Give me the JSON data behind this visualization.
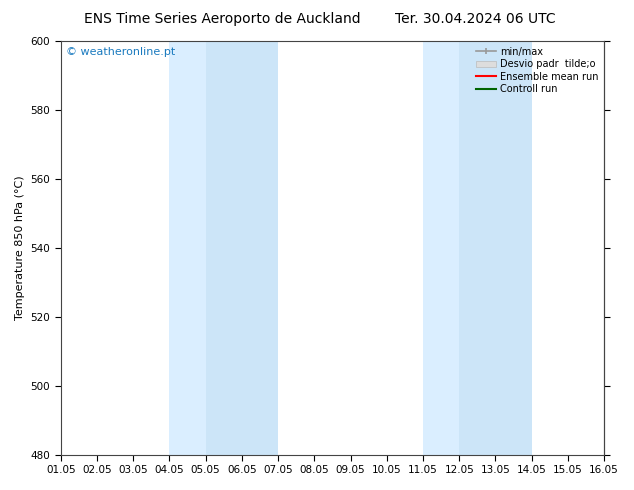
{
  "title_left": "ENS Time Series Aeroporto de Auckland",
  "title_right": "Ter. 30.04.2024 06 UTC",
  "ylabel": "Temperature 850 hPa (°C)",
  "xlim_start": 0,
  "xlim_end": 15,
  "ylim_bottom": 480,
  "ylim_top": 600,
  "yticks": [
    480,
    500,
    520,
    540,
    560,
    580,
    600
  ],
  "xtick_labels": [
    "01.05",
    "02.05",
    "03.05",
    "04.05",
    "05.05",
    "06.05",
    "07.05",
    "08.05",
    "09.05",
    "10.05",
    "11.05",
    "12.05",
    "13.05",
    "14.05",
    "15.05",
    "16.05"
  ],
  "shaded_regions": [
    {
      "xstart": 3.0,
      "xend": 4.0,
      "color": "#daeeff"
    },
    {
      "xstart": 4.0,
      "xend": 6.0,
      "color": "#cce5f8"
    },
    {
      "xstart": 10.0,
      "xend": 11.0,
      "color": "#daeeff"
    },
    {
      "xstart": 11.0,
      "xend": 13.0,
      "color": "#cce5f8"
    }
  ],
  "watermark_text": "© weatheronline.pt",
  "watermark_color": "#1a7abf",
  "legend_labels": [
    "min/max",
    "Desvio padr  tilde;o",
    "Ensemble mean run",
    "Controll run"
  ],
  "bg_color": "#ffffff",
  "plot_bg_color": "#ffffff",
  "spine_color": "#444444",
  "tick_color": "#000000",
  "title_fontsize": 10,
  "label_fontsize": 8,
  "tick_fontsize": 7.5
}
